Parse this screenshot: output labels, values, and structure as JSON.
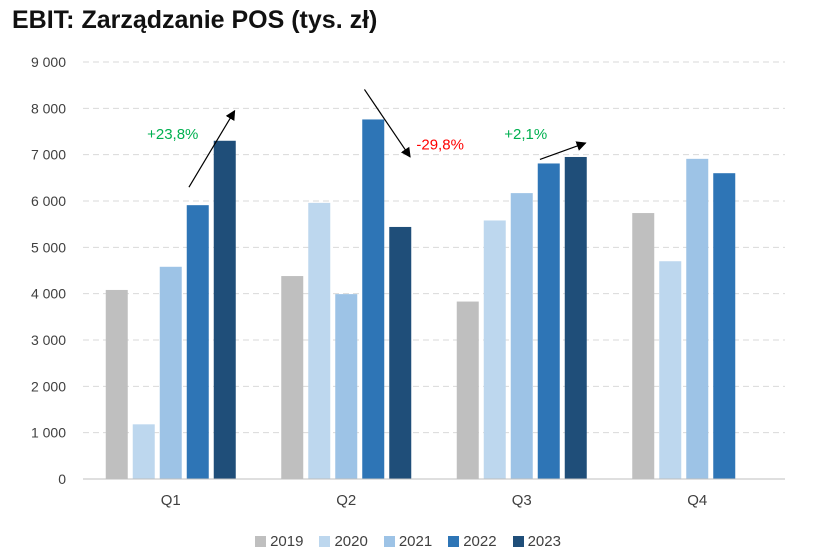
{
  "chart_data": {
    "type": "bar",
    "title": "EBIT: Zarządzanie POS (tys. zł)",
    "xlabel": "",
    "ylabel": "",
    "categories": [
      "Q1",
      "Q2",
      "Q3",
      "Q4"
    ],
    "ylim": [
      0,
      9000
    ],
    "yticks": [
      0,
      1000,
      2000,
      3000,
      4000,
      5000,
      6000,
      7000,
      8000,
      9000
    ],
    "ytick_labels": [
      "0",
      "1 000",
      "2 000",
      "3 000",
      "4 000",
      "5 000",
      "6 000",
      "7 000",
      "8 000",
      "9 000"
    ],
    "grid": true,
    "legend_position": "bottom",
    "series": [
      {
        "name": "2019",
        "color": "#bfbfbf",
        "values": [
          4080,
          4380,
          3830,
          5740
        ]
      },
      {
        "name": "2020",
        "color": "#bdd7ee",
        "values": [
          1180,
          5960,
          5580,
          4700
        ]
      },
      {
        "name": "2021",
        "color": "#9dc3e6",
        "values": [
          4580,
          3990,
          6170,
          6910
        ]
      },
      {
        "name": "2022",
        "color": "#2e75b6",
        "values": [
          5910,
          7760,
          6810,
          6600
        ]
      },
      {
        "name": "2023",
        "color": "#1f4e79",
        "values": [
          7300,
          5440,
          6950,
          null
        ]
      }
    ],
    "annotations": [
      {
        "text": "+23,8%",
        "category": "Q1",
        "color": "#00b050"
      },
      {
        "text": "-29,8%",
        "category": "Q2",
        "color": "#ff0000"
      },
      {
        "text": "+2,1%",
        "category": "Q3",
        "color": "#00b050"
      }
    ]
  }
}
